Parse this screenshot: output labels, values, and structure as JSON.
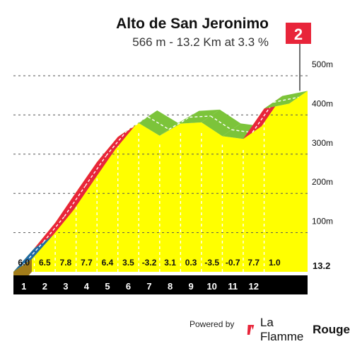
{
  "chart_data": {
    "type": "area",
    "title": "Alto de San Jeronimo",
    "subtitle": "566 m - 13.2 Km at 3.3 %",
    "category_badge": "2",
    "x_ticks": [
      "1",
      "2",
      "3",
      "4",
      "5",
      "6",
      "7",
      "8",
      "9",
      "10",
      "11",
      "12"
    ],
    "x_end_label": "13.2",
    "y_ticks": [
      "100m",
      "200m",
      "300m",
      "400m",
      "500m"
    ],
    "x": [
      0,
      1,
      2,
      3,
      4,
      5,
      6,
      7,
      8,
      9,
      10,
      11,
      12,
      13.2
    ],
    "elevation_gain": [
      0,
      60,
      125,
      203,
      280,
      344,
      379,
      347,
      378,
      381,
      346,
      339,
      416,
      429
    ],
    "gradients": [
      6.0,
      6.5,
      7.8,
      7.7,
      6.4,
      3.5,
      -3.2,
      3.1,
      0.3,
      -3.5,
      -0.7,
      7.7,
      1.0
    ],
    "gradient_labels": [
      "6.0",
      "6.5",
      "7.8",
      "7.7",
      "6.4",
      "3.5",
      "-3.2",
      "3.1",
      "0.3",
      "-3.5",
      "-0.7",
      "7.7",
      "1.0"
    ],
    "segment_colors": [
      "#1f6aa5",
      "#e8253a",
      "#e8253a",
      "#e8253a",
      "#e8253a",
      "#7cc43a",
      "#7cc43a",
      "#7cc43a",
      "#7cc43a",
      "#7cc43a",
      "#7cc43a",
      "#e8253a",
      "#7cc43a"
    ],
    "fill_color": "#ffff00",
    "base_color": "#000000",
    "side_color": "#a17c1a"
  },
  "footer": {
    "powered_by": "Powered by",
    "brand_la": "La Flamme",
    "brand_rouge": "Rouge"
  }
}
